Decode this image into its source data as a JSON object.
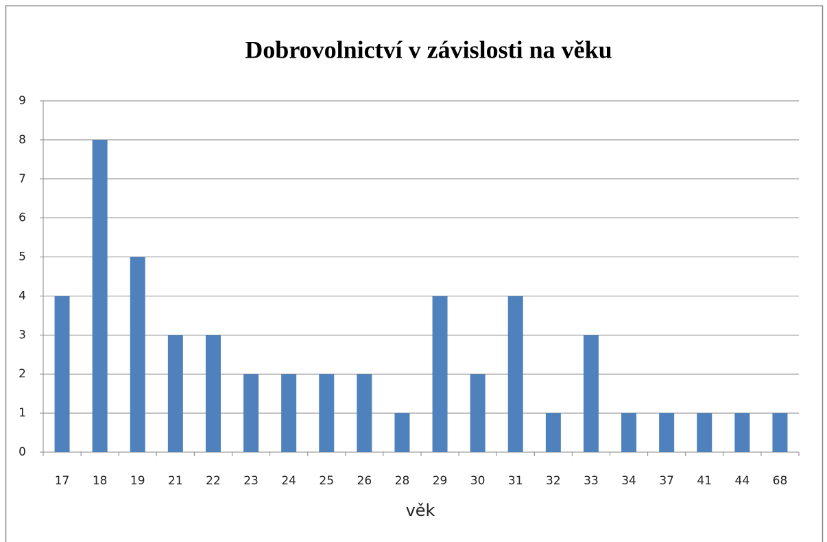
{
  "chart_data": {
    "type": "bar",
    "title": "Dobrovolnictví v závislosti na věku",
    "x_label": "věk",
    "categories": [
      "17",
      "18",
      "19",
      "21",
      "22",
      "23",
      "24",
      "25",
      "26",
      "28",
      "29",
      "30",
      "31",
      "32",
      "33",
      "34",
      "37",
      "41",
      "44",
      "68"
    ],
    "values": [
      4,
      8,
      5,
      3,
      3,
      2,
      2,
      2,
      2,
      1,
      4,
      2,
      4,
      1,
      3,
      1,
      1,
      1,
      1,
      1
    ],
    "color": "#4f81bd",
    "ylim": [
      0,
      9
    ],
    "yticks": [
      0,
      1,
      2,
      3,
      4,
      5,
      6,
      7,
      8,
      9
    ],
    "grid": true
  }
}
